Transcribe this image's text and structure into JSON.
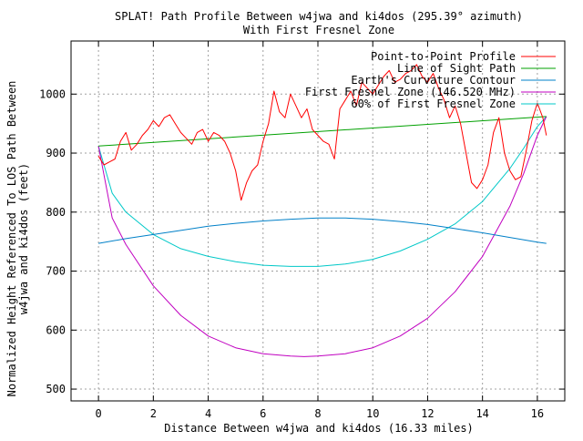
{
  "chart_data": {
    "type": "line",
    "title": "SPLAT! Path Profile Between w4jwa and ki4dos (295.39° azimuth)",
    "subtitle": "With First Fresnel Zone",
    "xlabel": "Distance Between w4jwa and ki4dos (16.33 miles)",
    "ylabel_line1": "Normalized Height Referenced To LOS Path Between",
    "ylabel_line2": "w4jwa and ki4dos (feet)",
    "xlim": [
      -1,
      17
    ],
    "ylim": [
      480,
      1090
    ],
    "x_ticks": [
      0,
      2,
      4,
      6,
      8,
      10,
      12,
      14,
      16
    ],
    "y_ticks": [
      500,
      600,
      700,
      800,
      900,
      1000
    ],
    "grid": true,
    "legend_position": "top-right",
    "series": [
      {
        "name": "Point-to-Point Profile",
        "color": "#ff0000",
        "x": [
          0,
          0.2,
          0.4,
          0.6,
          0.8,
          1.0,
          1.2,
          1.4,
          1.6,
          1.8,
          2.0,
          2.2,
          2.4,
          2.6,
          2.8,
          3.0,
          3.2,
          3.4,
          3.6,
          3.8,
          4.0,
          4.2,
          4.4,
          4.6,
          4.8,
          5.0,
          5.2,
          5.4,
          5.6,
          5.8,
          6.0,
          6.2,
          6.4,
          6.6,
          6.8,
          7.0,
          7.2,
          7.4,
          7.6,
          7.8,
          8.0,
          8.2,
          8.4,
          8.6,
          8.8,
          9.0,
          9.2,
          9.4,
          9.6,
          9.8,
          10.0,
          10.2,
          10.4,
          10.6,
          10.8,
          11.0,
          11.2,
          11.4,
          11.6,
          11.8,
          12.0,
          12.2,
          12.4,
          12.6,
          12.8,
          13.0,
          13.2,
          13.4,
          13.6,
          13.8,
          14.0,
          14.2,
          14.4,
          14.6,
          14.8,
          15.0,
          15.2,
          15.4,
          15.6,
          15.8,
          16.0,
          16.2,
          16.33
        ],
        "y": [
          895,
          880,
          885,
          890,
          920,
          935,
          905,
          915,
          930,
          940,
          955,
          945,
          960,
          965,
          950,
          935,
          925,
          915,
          935,
          940,
          920,
          935,
          930,
          920,
          900,
          870,
          820,
          850,
          870,
          880,
          920,
          950,
          1005,
          970,
          960,
          1000,
          980,
          960,
          975,
          940,
          930,
          920,
          915,
          890,
          975,
          990,
          1005,
          980,
          1020,
          1010,
          1000,
          1015,
          1030,
          1040,
          1020,
          1025,
          1035,
          1040,
          1050,
          1030,
          1020,
          1035,
          1010,
          990,
          960,
          980,
          950,
          900,
          850,
          840,
          855,
          880,
          935,
          960,
          900,
          870,
          855,
          860,
          905,
          955,
          985,
          960,
          930
        ]
      },
      {
        "name": "Line of Sight Path",
        "color": "#00a000",
        "x": [
          0,
          16.33
        ],
        "y": [
          912,
          962
        ]
      },
      {
        "name": "Earth's Curvature Contour",
        "color": "#0080c8",
        "x": [
          0,
          1,
          2,
          3,
          4,
          5,
          6,
          7,
          8,
          9,
          10,
          11,
          12,
          13,
          14,
          15,
          16,
          16.33
        ],
        "y": [
          747,
          755,
          762,
          769,
          776,
          781,
          785,
          788,
          790,
          790,
          788,
          784,
          779,
          772,
          765,
          757,
          749,
          747
        ]
      },
      {
        "name": "First Fresnel Zone (146.520 MHz)",
        "color": "#c000c0",
        "x": [
          0,
          0.5,
          1,
          2,
          3,
          4,
          5,
          6,
          7,
          7.5,
          8,
          9,
          10,
          11,
          12,
          13,
          14,
          15,
          15.5,
          16,
          16.33
        ],
        "y": [
          912,
          790,
          745,
          675,
          625,
          590,
          570,
          560,
          556,
          555,
          556,
          560,
          570,
          590,
          620,
          665,
          725,
          810,
          865,
          930,
          962
        ]
      },
      {
        "name": "60% of First Fresnel Zone",
        "color": "#00c8c8",
        "x": [
          0,
          0.5,
          1,
          2,
          3,
          4,
          5,
          6,
          7,
          7.5,
          8,
          9,
          10,
          11,
          12,
          13,
          14,
          15,
          15.5,
          16,
          16.33
        ],
        "y": [
          912,
          832,
          800,
          762,
          738,
          725,
          716,
          710,
          708,
          708,
          708,
          712,
          720,
          734,
          754,
          780,
          818,
          874,
          908,
          945,
          962
        ]
      }
    ]
  }
}
